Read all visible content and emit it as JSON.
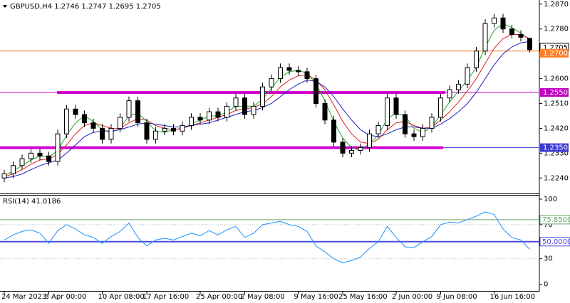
{
  "chart_data": {
    "type": "candlestick",
    "title": "GBPUSD,H4 1.2746 1.2747 1.2695 1.2705",
    "categories": [
      "24 Mar 2023",
      null,
      null,
      null,
      null,
      "3 Apr 00:00",
      null,
      null,
      null,
      null,
      null,
      "10 Apr 08:00",
      null,
      null,
      null,
      null,
      "17 Apr 16:00",
      null,
      null,
      null,
      null,
      null,
      "25 Apr 00:00",
      null,
      null,
      null,
      null,
      "2 May 08:00",
      null,
      null,
      null,
      null,
      null,
      "9 May 16:00",
      null,
      null,
      null,
      null,
      "25 May 16:00",
      null,
      null,
      null,
      null,
      null,
      "2 Jun 00:00",
      null,
      null,
      null,
      null,
      "9 Jun 08:00",
      null,
      null,
      null,
      null,
      null,
      "16 Jun 16:00",
      null,
      null,
      null,
      null
    ],
    "open": [
      1.224,
      1.2255,
      1.2285,
      1.231,
      1.233,
      1.232,
      1.23,
      1.24,
      1.249,
      1.247,
      1.244,
      1.242,
      1.238,
      1.242,
      1.246,
      1.252,
      1.244,
      1.238,
      1.241,
      1.242,
      1.241,
      1.243,
      1.246,
      1.245,
      1.248,
      1.246,
      1.25,
      1.253,
      1.247,
      1.25,
      1.257,
      1.26,
      1.264,
      1.263,
      1.2625,
      1.26,
      1.251,
      1.245,
      1.237,
      1.233,
      1.234,
      1.235,
      1.24,
      1.243,
      1.253,
      1.247,
      1.24,
      1.239,
      1.242,
      1.246,
      1.253,
      1.256,
      1.258,
      1.264,
      1.27,
      1.28,
      1.282,
      1.278,
      1.276,
      1.2746
    ],
    "high": [
      1.227,
      1.23,
      1.2325,
      1.2345,
      1.2345,
      1.2335,
      1.2415,
      1.2505,
      1.2505,
      1.2485,
      1.2455,
      1.2435,
      1.2435,
      1.2475,
      1.2535,
      1.2535,
      1.2455,
      1.2425,
      1.2435,
      1.2435,
      1.2445,
      1.2475,
      1.2475,
      1.2495,
      1.2495,
      1.2515,
      1.2545,
      1.2545,
      1.2515,
      1.2585,
      1.2615,
      1.2655,
      1.2655,
      1.2645,
      1.264,
      1.2615,
      1.2525,
      1.2465,
      1.2385,
      1.2355,
      1.2365,
      1.2415,
      1.2445,
      1.2545,
      1.2545,
      1.2485,
      1.2415,
      1.2435,
      1.2475,
      1.2545,
      1.2575,
      1.2595,
      1.2655,
      1.2715,
      1.2815,
      1.2835,
      1.2835,
      1.2795,
      1.2775,
      1.2747
    ],
    "low": [
      1.2225,
      1.224,
      1.227,
      1.2295,
      1.2305,
      1.2285,
      1.2285,
      1.2385,
      1.2455,
      1.2425,
      1.2405,
      1.2365,
      1.2365,
      1.2405,
      1.2445,
      1.2425,
      1.2365,
      1.2365,
      1.2395,
      1.2395,
      1.2395,
      1.2415,
      1.2435,
      1.2435,
      1.2445,
      1.2445,
      1.2485,
      1.2455,
      1.2455,
      1.2485,
      1.2555,
      1.2585,
      1.2615,
      1.261,
      1.2585,
      1.2495,
      1.2435,
      1.2355,
      1.2315,
      1.2315,
      1.2325,
      1.2335,
      1.2385,
      1.2415,
      1.2455,
      1.2385,
      1.2375,
      1.2375,
      1.2405,
      1.2445,
      1.2515,
      1.2545,
      1.2565,
      1.2625,
      1.2685,
      1.2785,
      1.2765,
      1.2745,
      1.2735,
      1.2695
    ],
    "close": [
      1.2255,
      1.2285,
      1.231,
      1.233,
      1.232,
      1.23,
      1.24,
      1.249,
      1.247,
      1.244,
      1.242,
      1.238,
      1.242,
      1.246,
      1.252,
      1.244,
      1.238,
      1.241,
      1.242,
      1.241,
      1.243,
      1.246,
      1.245,
      1.248,
      1.246,
      1.25,
      1.253,
      1.247,
      1.25,
      1.257,
      1.26,
      1.264,
      1.263,
      1.2625,
      1.26,
      1.251,
      1.245,
      1.237,
      1.233,
      1.234,
      1.235,
      1.24,
      1.243,
      1.253,
      1.247,
      1.24,
      1.239,
      1.242,
      1.246,
      1.253,
      1.256,
      1.258,
      1.264,
      1.27,
      1.28,
      1.282,
      1.278,
      1.276,
      1.275,
      1.2705
    ],
    "series": [
      {
        "color": "#1faa1f",
        "values": [
          1.225,
          1.2265,
          1.2285,
          1.2305,
          1.232,
          1.2315,
          1.234,
          1.2395,
          1.244,
          1.2465,
          1.2445,
          1.2415,
          1.2405,
          1.242,
          1.2465,
          1.2475,
          1.2445,
          1.241,
          1.2405,
          1.2415,
          1.242,
          1.2435,
          1.245,
          1.2465,
          1.2465,
          1.248,
          1.25,
          1.25,
          1.25,
          1.2525,
          1.2565,
          1.2605,
          1.2625,
          1.263,
          1.262,
          1.258,
          1.252,
          1.2445,
          1.2385,
          1.235,
          1.234,
          1.2365,
          1.2395,
          1.2455,
          1.2475,
          1.2465,
          1.242,
          1.2405,
          1.2425,
          1.247,
          1.2515,
          1.2555,
          1.2595,
          1.264,
          1.2715,
          1.2775,
          1.28,
          1.2785,
          1.2765,
          1.274
        ]
      },
      {
        "color": "#e02020",
        "values": [
          1.2245,
          1.2255,
          1.227,
          1.229,
          1.2305,
          1.231,
          1.2325,
          1.236,
          1.24,
          1.243,
          1.244,
          1.243,
          1.242,
          1.242,
          1.244,
          1.2455,
          1.245,
          1.243,
          1.242,
          1.2415,
          1.242,
          1.243,
          1.244,
          1.245,
          1.246,
          1.247,
          1.2485,
          1.249,
          1.2495,
          1.251,
          1.2535,
          1.257,
          1.2595,
          1.261,
          1.2615,
          1.2595,
          1.256,
          1.2505,
          1.2445,
          1.24,
          1.237,
          1.2365,
          1.238,
          1.2415,
          1.244,
          1.2445,
          1.243,
          1.242,
          1.2425,
          1.245,
          1.248,
          1.2515,
          1.2555,
          1.26,
          1.2655,
          1.271,
          1.2745,
          1.276,
          1.276,
          1.2745
        ]
      },
      {
        "color": "#2020c0",
        "values": [
          1.224,
          1.2245,
          1.2255,
          1.227,
          1.2285,
          1.2295,
          1.2305,
          1.233,
          1.236,
          1.239,
          1.2405,
          1.241,
          1.241,
          1.2415,
          1.2425,
          1.2435,
          1.244,
          1.2435,
          1.243,
          1.2425,
          1.2425,
          1.243,
          1.2435,
          1.244,
          1.245,
          1.246,
          1.247,
          1.248,
          1.2485,
          1.2495,
          1.251,
          1.2535,
          1.256,
          1.258,
          1.2595,
          1.259,
          1.257,
          1.2535,
          1.249,
          1.245,
          1.2415,
          1.2395,
          1.239,
          1.24,
          1.2415,
          1.2425,
          1.2425,
          1.242,
          1.242,
          1.2435,
          1.2455,
          1.248,
          1.251,
          1.255,
          1.26,
          1.265,
          1.269,
          1.2715,
          1.273,
          1.2735
        ]
      }
    ],
    "ylim": [
      1.2184,
      1.2885
    ],
    "yticks": [
      {
        "value": 1.287,
        "label": "1.2870"
      },
      {
        "value": 1.278,
        "label": "1.2780"
      },
      {
        "value": 1.26,
        "label": "1.2600"
      },
      {
        "value": 1.251,
        "label": "1.2510"
      },
      {
        "value": 1.242,
        "label": "1.2420"
      },
      {
        "value": 1.233,
        "label": "1.2330"
      },
      {
        "value": 1.224,
        "label": "1.2240"
      }
    ],
    "last_price": {
      "value": 1.2705,
      "label": "1.2705"
    },
    "levels": [
      {
        "value": 1.27,
        "label": "1.2700",
        "color": "#ff7f27"
      },
      {
        "value": 1.255,
        "label": "1.2550",
        "color": "#c000c0"
      },
      {
        "value": 1.235,
        "label": "1.2350",
        "color": "#3a3ad0"
      }
    ],
    "indicator": {
      "type": "line",
      "title": "RSI(14) 41.0186",
      "color": "#1e90ff",
      "values": [
        52,
        58,
        62,
        64,
        60,
        48,
        63,
        70,
        65,
        58,
        55,
        48,
        56,
        62,
        72,
        55,
        45,
        52,
        54,
        52,
        56,
        60,
        57,
        63,
        58,
        64,
        68,
        55,
        60,
        70,
        72,
        74,
        70,
        68,
        62,
        45,
        38,
        30,
        25,
        28,
        32,
        42,
        50,
        68,
        55,
        44,
        43,
        50,
        56,
        70,
        73,
        72,
        76,
        80,
        85,
        82,
        65,
        55,
        52,
        41.0186
      ],
      "ylim": [
        -7,
        105
      ],
      "yticks": [
        100,
        70,
        30,
        0
      ],
      "levels": [
        {
          "value": 75.85,
          "label": "75.8500",
          "color": "#6aa86a"
        },
        {
          "value": 50,
          "label": "50.0000",
          "color": "#4a4ae0"
        }
      ]
    }
  }
}
